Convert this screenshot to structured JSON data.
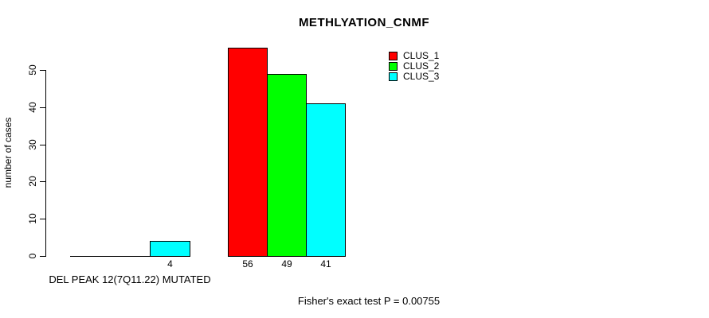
{
  "chart_data": {
    "type": "bar",
    "title": "METHLYATION_CNMF",
    "ylabel": "number of cases",
    "xlabel": "",
    "group_label": "DEL PEAK 12(7Q11.22) MUTATED",
    "annotation": "Fisher's exact test P = 0.00755",
    "categories": [
      "DEL PEAK 12(7Q11.22) MUTATED",
      ""
    ],
    "series": [
      {
        "name": "CLUS_1",
        "color": "#ff0000",
        "values": [
          0,
          56
        ]
      },
      {
        "name": "CLUS_2",
        "color": "#00ff00",
        "values": [
          0,
          49
        ]
      },
      {
        "name": "CLUS_3",
        "color": "#00ffff",
        "values": [
          4,
          41
        ]
      }
    ],
    "bar_value_labels_shown": [
      "4",
      "56",
      "49",
      "41"
    ],
    "yticks": [
      0,
      10,
      20,
      30,
      40,
      50
    ],
    "ylim": [
      0,
      58
    ],
    "grid": false,
    "legend_position": "top-right",
    "legend_entries": [
      "CLUS_1",
      "CLUS_2",
      "CLUS_3"
    ],
    "legend_colors": [
      "#ff0000",
      "#00ff00",
      "#00ffff"
    ]
  }
}
